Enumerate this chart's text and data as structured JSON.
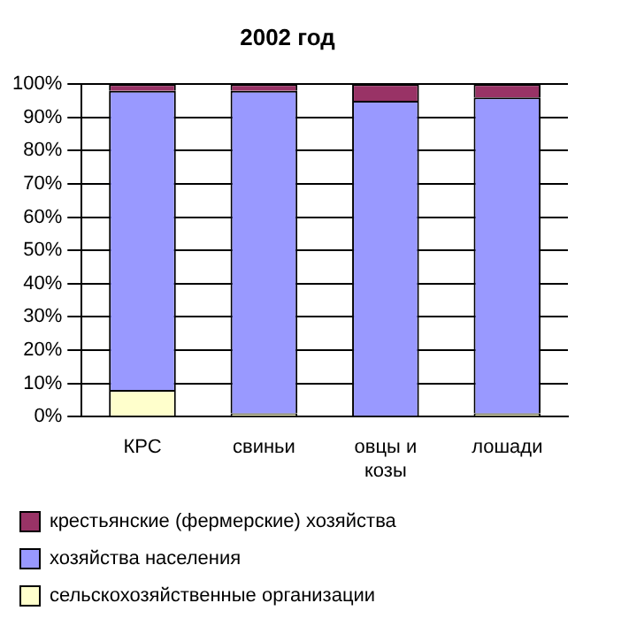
{
  "chart_data": {
    "type": "bar",
    "title": "2002 год",
    "stacked": true,
    "categories": [
      "КРС",
      "свиньи",
      "овцы и козы",
      "лошади"
    ],
    "series": [
      {
        "name": "сельскохозяйственные организации",
        "color": "#ffffcc",
        "values": [
          8,
          1,
          0,
          1
        ]
      },
      {
        "name": "хозяйства населения",
        "color": "#9999ff",
        "values": [
          90,
          97,
          95,
          95
        ]
      },
      {
        "name": "крестьянские (фермерские) хозяйства",
        "color": "#993366",
        "values": [
          2,
          2,
          5,
          4
        ]
      }
    ],
    "ylim": [
      0,
      100
    ],
    "yticks": [
      {
        "value": 0,
        "label": "0%"
      },
      {
        "value": 10,
        "label": "10%"
      },
      {
        "value": 20,
        "label": "20%"
      },
      {
        "value": 30,
        "label": "30%"
      },
      {
        "value": 40,
        "label": "40%"
      },
      {
        "value": 50,
        "label": "50%"
      },
      {
        "value": 60,
        "label": "60%"
      },
      {
        "value": 70,
        "label": "70%"
      },
      {
        "value": 80,
        "label": "80%"
      },
      {
        "value": 90,
        "label": "90%"
      },
      {
        "value": 100,
        "label": "100%"
      }
    ],
    "grid": "y",
    "legend": "bottom"
  }
}
